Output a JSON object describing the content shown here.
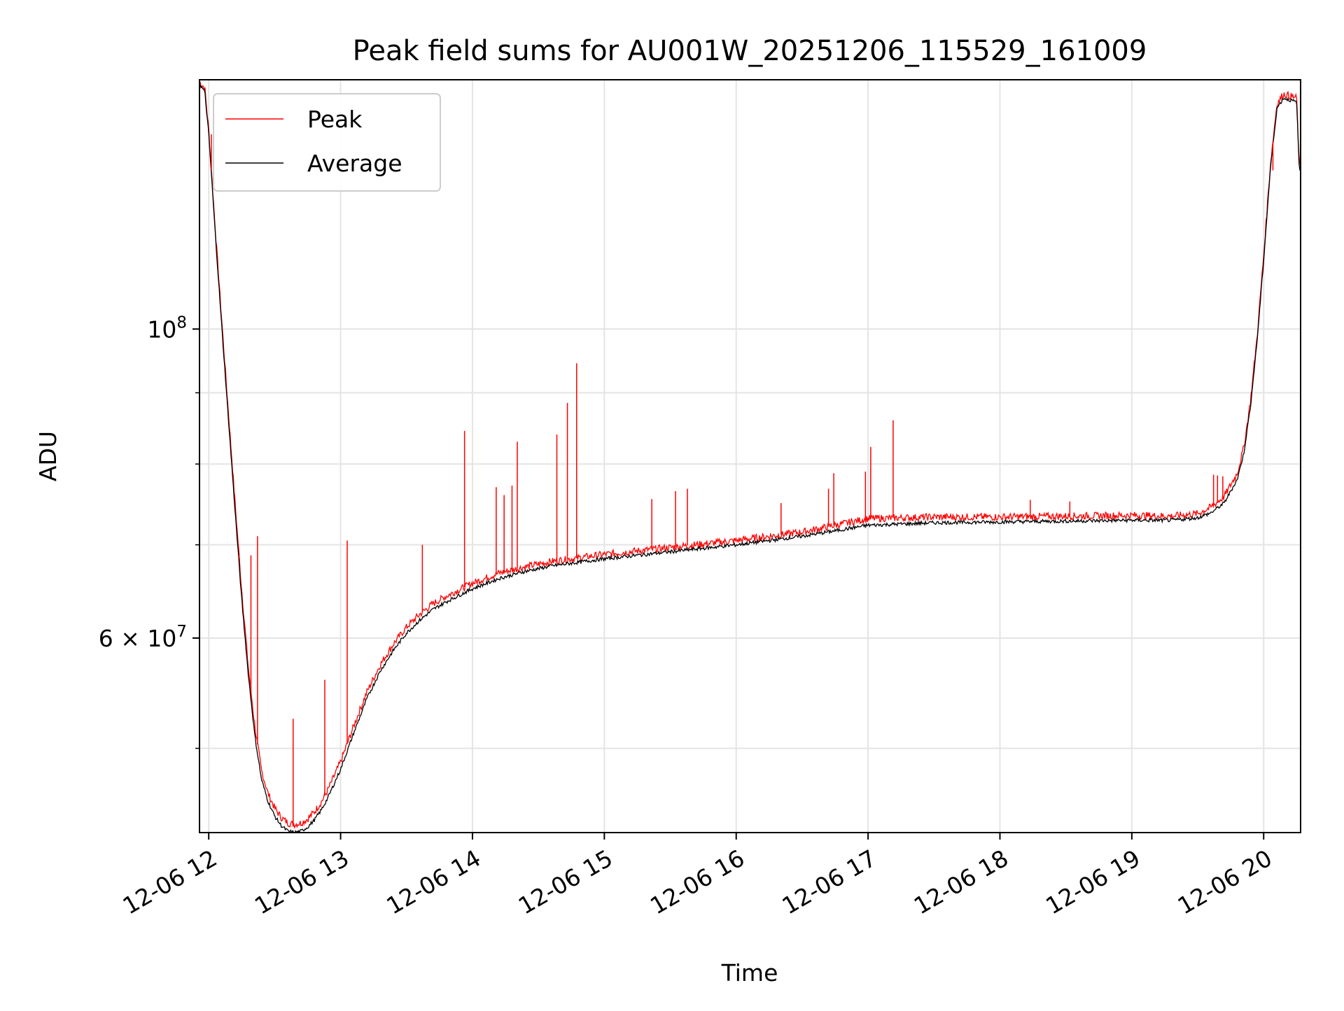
{
  "chart_data": {
    "type": "line",
    "title": "Peak field sums for AU001W_20251206_115529_161009",
    "xlabel": "Time",
    "ylabel": "ADU",
    "y_scale": "log",
    "x_unit": "hours of 2025-12-06",
    "xlim": [
      11.93,
      20.28
    ],
    "ylim": [
      43500000,
      151000000
    ],
    "x_ticks": [
      {
        "value": 12,
        "label": "12-06 12"
      },
      {
        "value": 13,
        "label": "12-06 13"
      },
      {
        "value": 14,
        "label": "12-06 14"
      },
      {
        "value": 15,
        "label": "12-06 15"
      },
      {
        "value": 16,
        "label": "12-06 16"
      },
      {
        "value": 17,
        "label": "12-06 17"
      },
      {
        "value": 18,
        "label": "12-06 18"
      },
      {
        "value": 19,
        "label": "12-06 19"
      },
      {
        "value": 20,
        "label": "12-06 20"
      }
    ],
    "y_major_ticks": [
      {
        "value": 60000000,
        "label_base": "6",
        "label_exp": "7",
        "label_mid": " × 10"
      },
      {
        "value": 100000000,
        "label_base": "",
        "label_exp": "8",
        "label_mid": "10"
      }
    ],
    "y_minor_ticks": [
      50000000,
      70000000,
      80000000,
      90000000
    ],
    "grid": true,
    "legend_position": "upper-left",
    "series": [
      {
        "name": "Average",
        "color": "#000000",
        "x": [
          11.93,
          11.97,
          12.0,
          12.05,
          12.1,
          12.15,
          12.2,
          12.25,
          12.3,
          12.35,
          12.4,
          12.45,
          12.5,
          12.55,
          12.6,
          12.65,
          12.7,
          12.75,
          12.8,
          12.85,
          12.9,
          13.0,
          13.1,
          13.2,
          13.3,
          13.4,
          13.5,
          13.6,
          13.7,
          13.8,
          13.9,
          14.0,
          14.2,
          14.4,
          14.6,
          14.8,
          15.0,
          15.5,
          16.0,
          16.5,
          17.0,
          17.5,
          18.0,
          18.5,
          19.0,
          19.3,
          19.5,
          19.6,
          19.7,
          19.8,
          19.85,
          19.9,
          19.95,
          20.0,
          20.05,
          20.1,
          20.15,
          20.2,
          20.25,
          20.27
        ],
        "values": [
          150000000,
          148000000,
          138000000,
          117000000,
          100000000,
          86000000,
          74000000,
          64000000,
          56500000,
          51000000,
          47500000,
          45800000,
          44700000,
          44000000,
          43600000,
          43500000,
          43600000,
          43900000,
          44400000,
          45100000,
          46000000,
          48300000,
          51300000,
          54300000,
          56800000,
          58800000,
          60500000,
          61800000,
          62900000,
          63700000,
          64400000,
          65100000,
          66200000,
          67000000,
          67600000,
          68000000,
          68400000,
          69200000,
          70000000,
          71000000,
          72300000,
          72600000,
          72700000,
          72800000,
          72900000,
          72900000,
          73200000,
          73800000,
          75000000,
          78000000,
          81500000,
          88000000,
          98000000,
          112000000,
          130000000,
          144000000,
          146500000,
          146000000,
          145500000,
          130000000
        ]
      },
      {
        "name": "Peak",
        "color": "#ff0000",
        "x": [
          11.93,
          11.97,
          12.0,
          12.05,
          12.1,
          12.15,
          12.2,
          12.25,
          12.3,
          12.35,
          12.4,
          12.45,
          12.5,
          12.55,
          12.6,
          12.65,
          12.7,
          12.75,
          12.8,
          12.85,
          12.9,
          13.0,
          13.1,
          13.2,
          13.3,
          13.4,
          13.5,
          13.6,
          13.7,
          13.8,
          13.9,
          14.0,
          14.2,
          14.4,
          14.6,
          14.8,
          15.0,
          15.5,
          16.0,
          16.5,
          17.0,
          17.5,
          18.0,
          18.5,
          19.0,
          19.3,
          19.5,
          19.6,
          19.7,
          19.8,
          19.85,
          19.9,
          19.95,
          20.0,
          20.05,
          20.1,
          20.15,
          20.2,
          20.25,
          20.27
        ],
        "values": [
          150500000,
          149000000,
          139000000,
          118000000,
          101000000,
          87000000,
          75000000,
          65000000,
          57200000,
          51800000,
          48200000,
          46400000,
          45300000,
          44600000,
          44200000,
          44100000,
          44200000,
          44500000,
          45000000,
          45700000,
          46600000,
          48900000,
          51900000,
          54900000,
          57400000,
          59400000,
          61100000,
          62400000,
          63500000,
          64300000,
          65000000,
          65700000,
          66800000,
          67500000,
          68100000,
          68500000,
          68900000,
          69700000,
          70500000,
          71500000,
          73100000,
          73300000,
          73300000,
          73400000,
          73500000,
          73400000,
          73700000,
          74500000,
          75800000,
          78800000,
          82300000,
          88800000,
          98800000,
          113000000,
          131000000,
          145000000,
          147500000,
          147000000,
          146500000,
          131000000
        ]
      }
    ],
    "peak_spikes": [
      [
        12.02,
        138000000
      ],
      [
        12.23,
        68500000
      ],
      [
        12.32,
        68800000
      ],
      [
        12.37,
        71000000
      ],
      [
        12.64,
        52500000
      ],
      [
        12.88,
        56000000
      ],
      [
        13.05,
        70500000
      ],
      [
        13.62,
        70000000
      ],
      [
        13.94,
        84500000
      ],
      [
        14.18,
        77000000
      ],
      [
        14.24,
        76000000
      ],
      [
        14.3,
        77200000
      ],
      [
        14.34,
        83000000
      ],
      [
        14.64,
        84000000
      ],
      [
        14.72,
        88500000
      ],
      [
        14.79,
        94500000
      ],
      [
        15.36,
        75500000
      ],
      [
        15.54,
        76500000
      ],
      [
        15.63,
        76800000
      ],
      [
        16.34,
        75000000
      ],
      [
        16.7,
        76800000
      ],
      [
        16.74,
        78800000
      ],
      [
        16.98,
        79000000
      ],
      [
        17.02,
        82300000
      ],
      [
        17.19,
        86000000
      ],
      [
        18.23,
        75400000
      ],
      [
        18.53,
        75200000
      ],
      [
        19.62,
        78600000
      ],
      [
        19.65,
        78500000
      ],
      [
        19.69,
        78400000
      ],
      [
        20.07,
        130000000
      ]
    ]
  }
}
